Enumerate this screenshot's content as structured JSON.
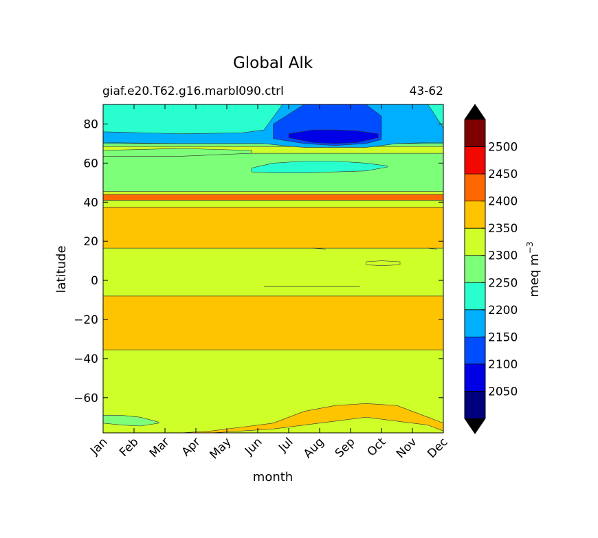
{
  "chart_data": {
    "type": "contour",
    "title": "Global Alk",
    "subtitle_left": "giaf.e20.T62.g16.marbl090.ctrl",
    "subtitle_right": "43-62",
    "xlabel": "month",
    "ylabel": "latitude",
    "x_ticks": [
      "Jan",
      "Feb",
      "Mar",
      "Apr",
      "May",
      "Jun",
      "Jul",
      "Aug",
      "Sep",
      "Oct",
      "Nov",
      "Dec"
    ],
    "y_ticks": [
      80,
      60,
      40,
      20,
      0,
      -20,
      -40,
      -60
    ],
    "ylim": [
      -78,
      90
    ],
    "colorbar": {
      "label": "meq m",
      "label_superscript": "−3",
      "levels": [
        2000,
        2050,
        2100,
        2150,
        2200,
        2250,
        2300,
        2350,
        2400,
        2450,
        2500,
        2550
      ],
      "tick_labels": [
        2050,
        2100,
        2150,
        2200,
        2250,
        2300,
        2350,
        2400,
        2450,
        2500
      ],
      "colors": [
        "#00007f",
        "#0000e6",
        "#004dff",
        "#00b0ff",
        "#29ffce",
        "#7dff7a",
        "#ceff29",
        "#ffc400",
        "#ff6800",
        "#f10800",
        "#7f0000"
      ],
      "extend": "both"
    },
    "bands": [
      {
        "y0": -78,
        "y1": -35.5,
        "value": 2325
      },
      {
        "y0": -35.5,
        "y1": -8,
        "value": 2375
      },
      {
        "y0": -8,
        "y1": 16.5,
        "value": 2325
      },
      {
        "y0": 16.5,
        "y1": 37.5,
        "value": 2375
      },
      {
        "y0": 37.5,
        "y1": 41,
        "value": 2325
      },
      {
        "y0": 41,
        "y1": 44,
        "value": 2425
      },
      {
        "y0": 44,
        "y1": 45.5,
        "value": 2325
      },
      {
        "y0": 45.5,
        "y1": 65,
        "value": 2275
      },
      {
        "y0": 65,
        "y1": 68.5,
        "value": 2325
      },
      {
        "y0": 68.5,
        "y1": 70,
        "value": 2275
      },
      {
        "y0": 70,
        "y1": 90,
        "value": 2225
      }
    ],
    "features": [
      {
        "value": 2375,
        "months": [
          0.0,
          0.7,
          1.5,
          2.5,
          3.5,
          4.5,
          5.5,
          6.5,
          7.5,
          8.5,
          9.5,
          10.5,
          11.0
        ],
        "lower": [
          -78,
          -78,
          -78,
          -78,
          -78,
          -77,
          -76,
          -74,
          -72,
          -70,
          -72,
          -74,
          -77
        ],
        "upper": [
          -78,
          -78,
          -78,
          -78,
          -77,
          -75,
          -73,
          -67,
          -64,
          -63,
          -64,
          -70,
          -73
        ]
      },
      {
        "value": 2275,
        "months": [
          0.0,
          0.6,
          1.2,
          1.8
        ],
        "lower": [
          -73,
          -74,
          -74.5,
          -73
        ],
        "upper": [
          -69,
          -69,
          -70,
          -72.5
        ]
      },
      {
        "value": 2175,
        "months": [
          0.0,
          2.5,
          4.5,
          5.2,
          5.8,
          6.5,
          7.5,
          8.5,
          9.5,
          10.5,
          11.0
        ],
        "lower": [
          70.5,
          70,
          70,
          70,
          69,
          68,
          68,
          68,
          70,
          70.5,
          70.5
        ],
        "upper": [
          90,
          90,
          90,
          90,
          90,
          90,
          90,
          90,
          90,
          90,
          90
        ]
      },
      {
        "value": 2225,
        "months": [
          0.0,
          2.5,
          4.5,
          5.2,
          5.8,
          6.5,
          7.5,
          8.5,
          9.5,
          10.5,
          11.0
        ],
        "lower": [
          76,
          75,
          75.5,
          77,
          90,
          90,
          90,
          90,
          90,
          90,
          78
        ],
        "upper": [
          90,
          90,
          90,
          90,
          90,
          90,
          90,
          90,
          90,
          90,
          90
        ]
      },
      {
        "value": 2125,
        "months": [
          5.5,
          6.5,
          7.5,
          8.5,
          9.0
        ],
        "lower": [
          72.5,
          70,
          69,
          70,
          72
        ],
        "upper": [
          80,
          90,
          90,
          90,
          84
        ]
      },
      {
        "value": 2075,
        "months": [
          6.0,
          6.8,
          7.5,
          8.2,
          8.9
        ],
        "lower": [
          73,
          70.5,
          70,
          70.5,
          73
        ],
        "upper": [
          75,
          77,
          77,
          76.5,
          75
        ]
      },
      {
        "value": 2275,
        "months": [
          0.0,
          2.5,
          4.8
        ],
        "lower": [
          63.5,
          63.5,
          65
        ],
        "upper": [
          66.5,
          67.5,
          66.5
        ]
      },
      {
        "value": 2225,
        "months": [
          4.8,
          5.5,
          6.5,
          7.5,
          8.5,
          9.2
        ],
        "lower": [
          55.5,
          55,
          55,
          55.5,
          56,
          58
        ],
        "upper": [
          57.5,
          60,
          61,
          61,
          60,
          58.5
        ]
      },
      {
        "value": 2325,
        "months": [
          8.5,
          9.0,
          9.6
        ],
        "lower": [
          8,
          7.5,
          8
        ],
        "upper": [
          9.5,
          10,
          9.5
        ]
      }
    ],
    "lines": [
      {
        "months": [
          5.2,
          8.3
        ],
        "lat": [
          -3,
          -3
        ]
      },
      {
        "months": [
          6.8,
          7.2
        ],
        "lat": [
          16.5,
          16
        ]
      },
      {
        "months": [
          10.5,
          10.8
        ],
        "lat": [
          16.5,
          16
        ]
      }
    ]
  }
}
